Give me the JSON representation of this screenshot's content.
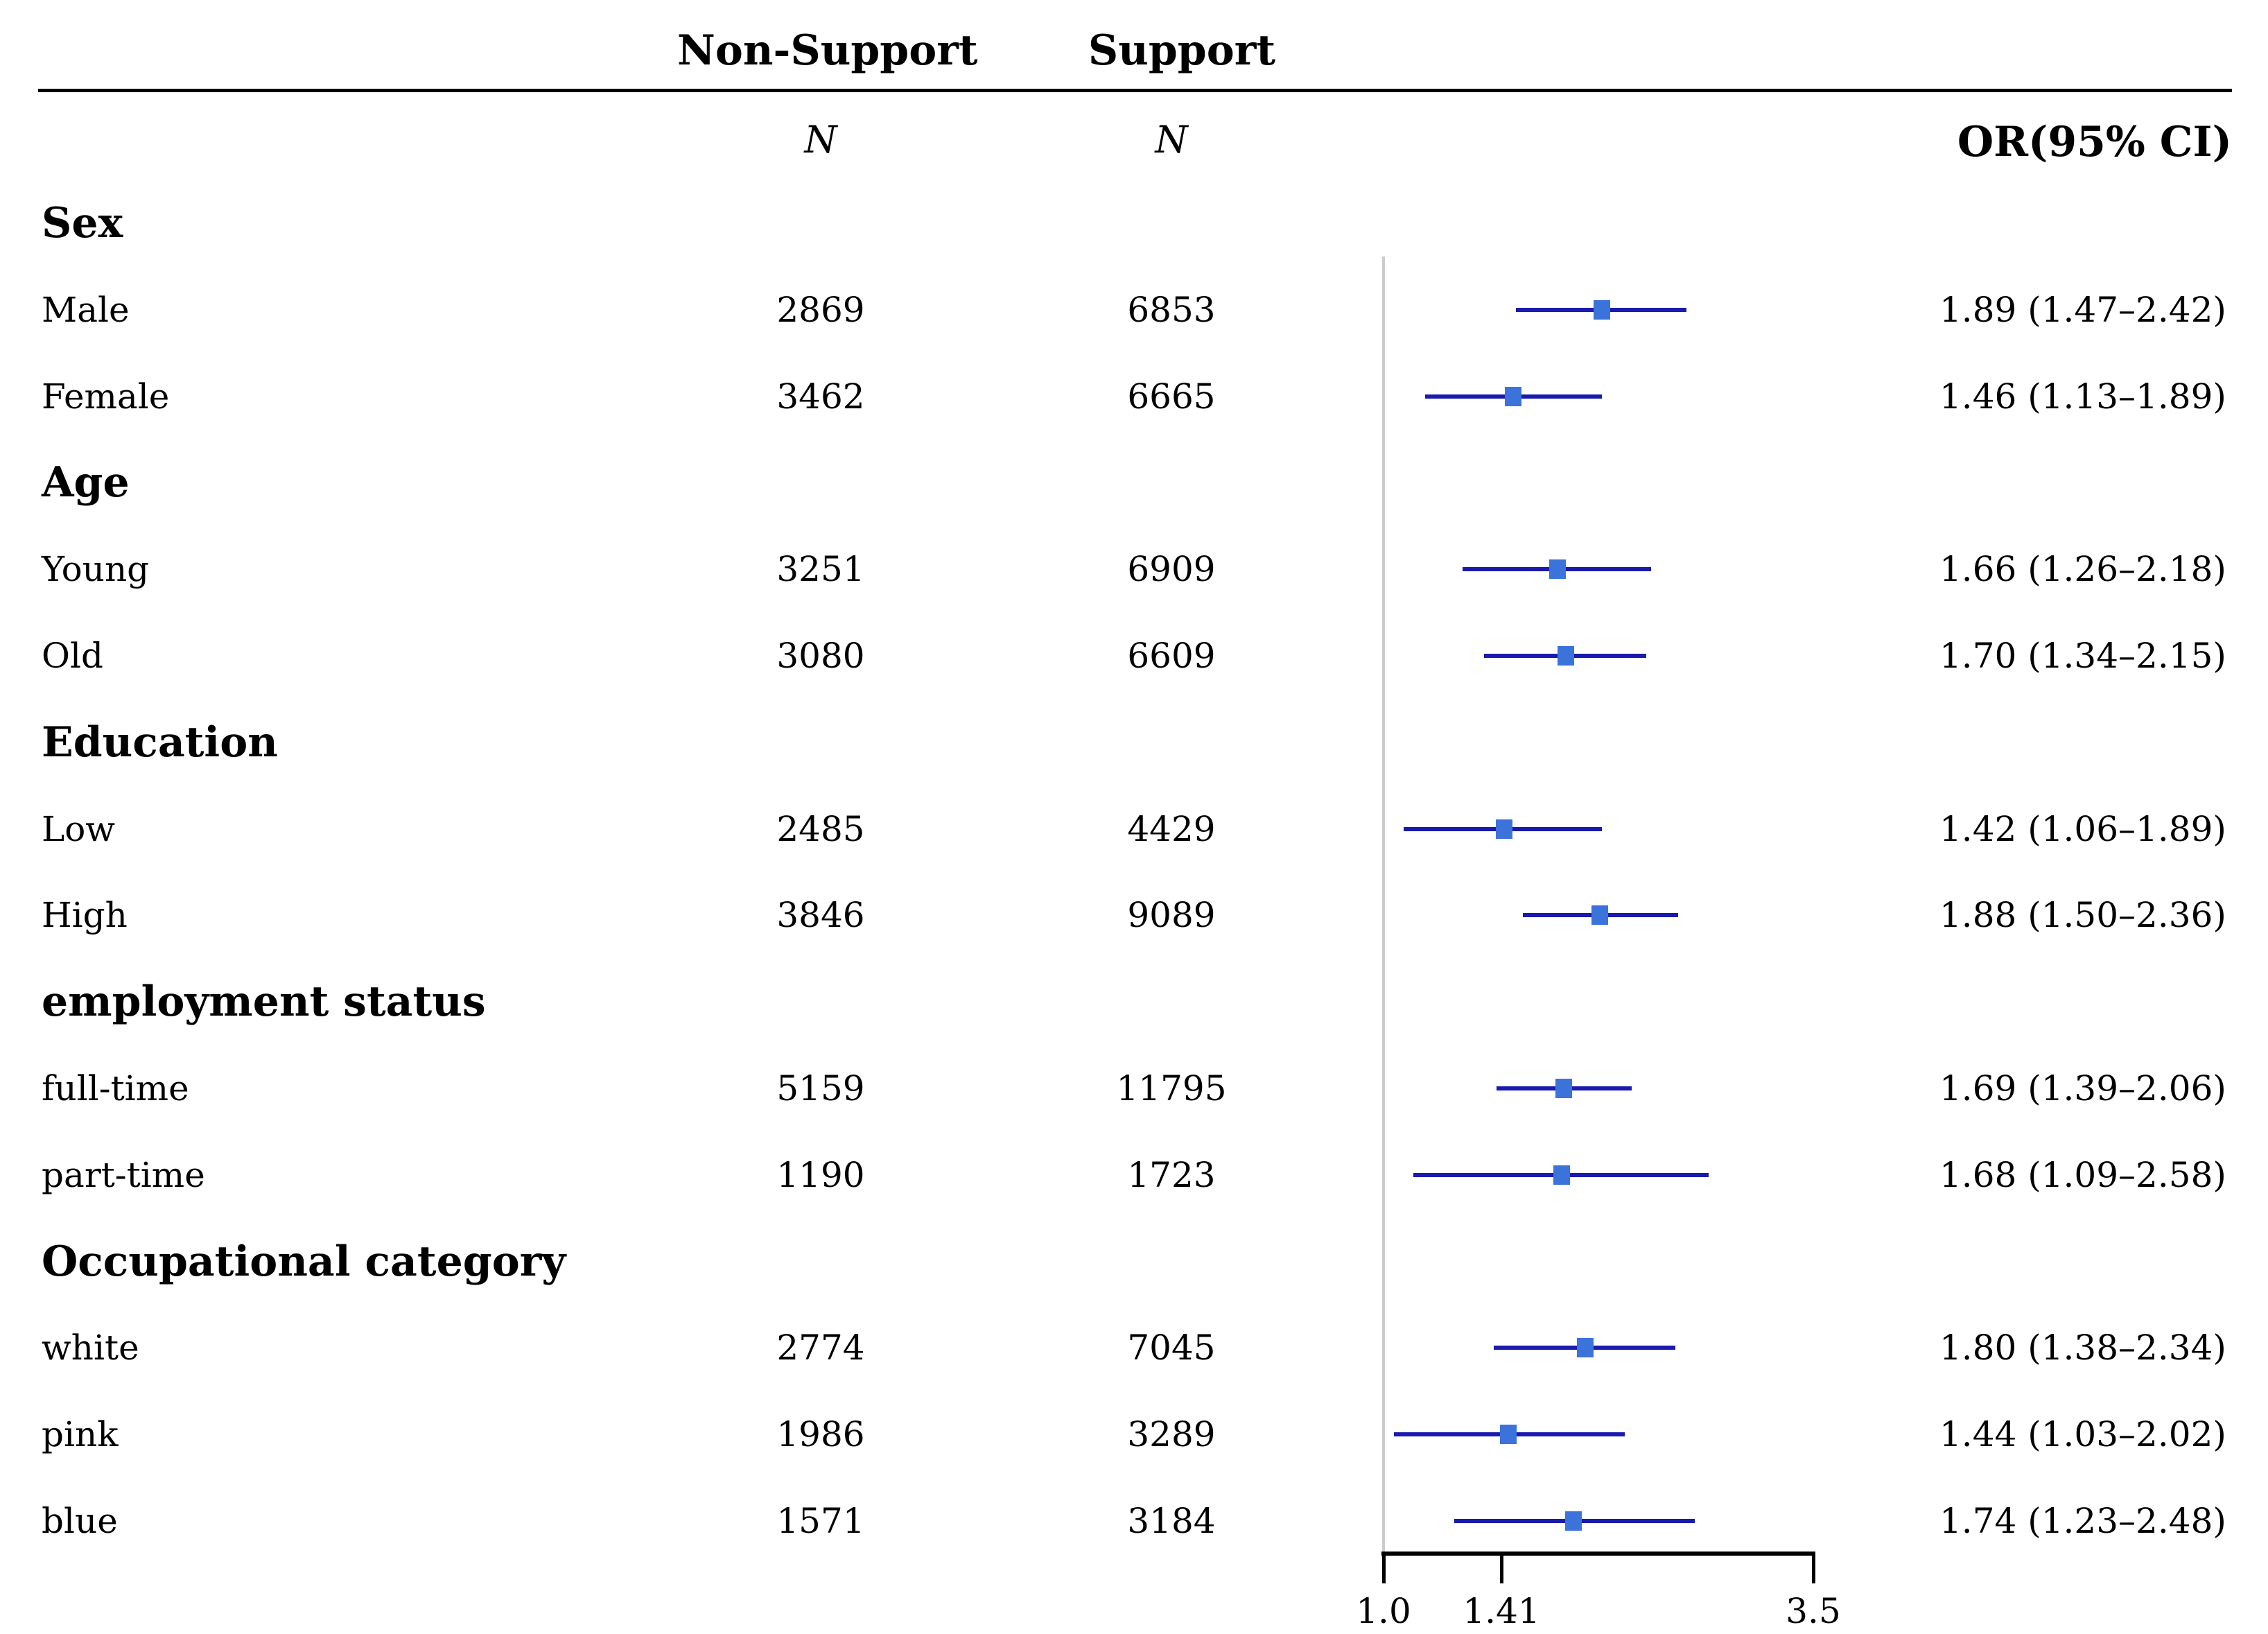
{
  "header": {
    "non_support": "Non-Support",
    "support": "Support",
    "n_col_left": "N",
    "n_col_right": "N",
    "or_col": "OR(95% CI)"
  },
  "chart_data": {
    "type": "forest",
    "x_scale": "log",
    "x_min": 1.0,
    "x_max": 3.5,
    "x_ticks": [
      1.0,
      1.41,
      3.5
    ],
    "x_tick_labels": [
      "1.0",
      "1.41",
      "3.5"
    ],
    "ref_line_x": 1.0,
    "columns": [
      "Non-Support N",
      "Support N",
      "OR(95% CI)"
    ],
    "sections": [
      {
        "header": "Sex",
        "rows": [
          {
            "label": "Male",
            "non_support_n": "2869",
            "support_n": "6853",
            "or": 1.89,
            "ci_low": 1.47,
            "ci_high": 2.42,
            "or_text": "1.89 (1.47–2.42)"
          },
          {
            "label": "Female",
            "non_support_n": "3462",
            "support_n": "6665",
            "or": 1.46,
            "ci_low": 1.13,
            "ci_high": 1.89,
            "or_text": "1.46 (1.13–1.89)"
          }
        ]
      },
      {
        "header": "Age",
        "rows": [
          {
            "label": "Young",
            "non_support_n": "3251",
            "support_n": "6909",
            "or": 1.66,
            "ci_low": 1.26,
            "ci_high": 2.18,
            "or_text": "1.66 (1.26–2.18)"
          },
          {
            "label": "Old",
            "non_support_n": "3080",
            "support_n": "6609",
            "or": 1.7,
            "ci_low": 1.34,
            "ci_high": 2.15,
            "or_text": "1.70 (1.34–2.15)"
          }
        ]
      },
      {
        "header": "Education",
        "rows": [
          {
            "label": "Low",
            "non_support_n": "2485",
            "support_n": "4429",
            "or": 1.42,
            "ci_low": 1.06,
            "ci_high": 1.89,
            "or_text": "1.42 (1.06–1.89)"
          },
          {
            "label": "High",
            "non_support_n": "3846",
            "support_n": "9089",
            "or": 1.88,
            "ci_low": 1.5,
            "ci_high": 2.36,
            "or_text": "1.88 (1.50–2.36)"
          }
        ]
      },
      {
        "header": "employment status",
        "rows": [
          {
            "label": "full-time",
            "non_support_n": "5159",
            "support_n": "11795",
            "or": 1.69,
            "ci_low": 1.39,
            "ci_high": 2.06,
            "or_text": "1.69 (1.39–2.06)"
          },
          {
            "label": "part-time",
            "non_support_n": "1190",
            "support_n": "1723",
            "or": 1.68,
            "ci_low": 1.09,
            "ci_high": 2.58,
            "or_text": "1.68 (1.09–2.58)"
          }
        ]
      },
      {
        "header": "Occupational category",
        "rows": [
          {
            "label": "white",
            "non_support_n": "2774",
            "support_n": "7045",
            "or": 1.8,
            "ci_low": 1.38,
            "ci_high": 2.34,
            "or_text": "1.80 (1.38–2.34)"
          },
          {
            "label": "pink",
            "non_support_n": "1986",
            "support_n": "3289",
            "or": 1.44,
            "ci_low": 1.03,
            "ci_high": 2.02,
            "or_text": "1.44 (1.03–2.02)"
          },
          {
            "label": "blue",
            "non_support_n": "1571",
            "support_n": "3184",
            "or": 1.74,
            "ci_low": 1.23,
            "ci_high": 2.48,
            "or_text": "1.74 (1.23–2.48)"
          }
        ]
      }
    ]
  },
  "colors": {
    "ci_line": "#1a1aae",
    "marker": "#3b73db",
    "ref_line": "#cccccc",
    "axis": "#000000",
    "text": "#000000",
    "background": "#ffffff"
  }
}
